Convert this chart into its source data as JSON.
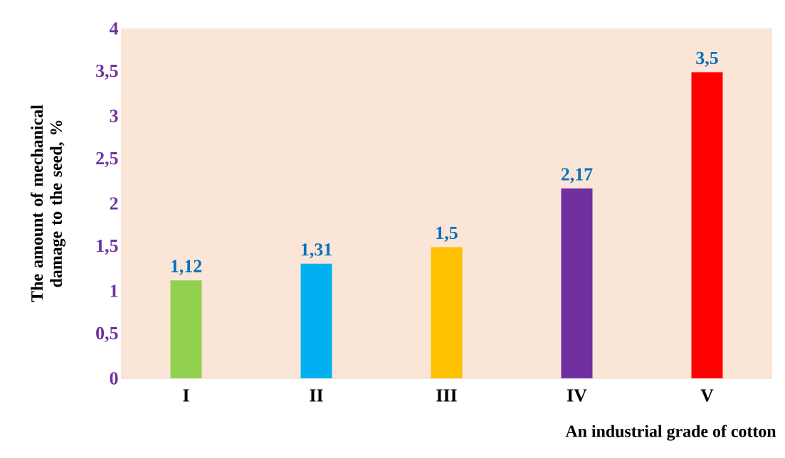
{
  "chart_data": {
    "type": "bar",
    "xlabel": "An industrial grade of cotton",
    "ylabel": "The amount of mechanical damage to the seed, %",
    "categories": [
      "I",
      "II",
      "III",
      "IV",
      "V"
    ],
    "values": [
      1.12,
      1.31,
      1.5,
      2.17,
      3.5
    ],
    "colors": [
      "#92d050",
      "#00b0f0",
      "#ffc000",
      "#7030a0",
      "#ff0000"
    ],
    "value_labels": [
      "1,12",
      "1,31",
      "1,5",
      "2,17",
      "3,5"
    ],
    "ylim": [
      0,
      4
    ],
    "yticks": [
      0,
      {
        "value": 0.5,
        "label": "0,5"
      },
      1,
      {
        "value": 1.5,
        "label": "1,5"
      },
      2,
      {
        "value": 2.5,
        "label": "2,5"
      },
      3,
      {
        "value": 3.5,
        "label": "3,5"
      },
      4
    ],
    "grid": false
  }
}
